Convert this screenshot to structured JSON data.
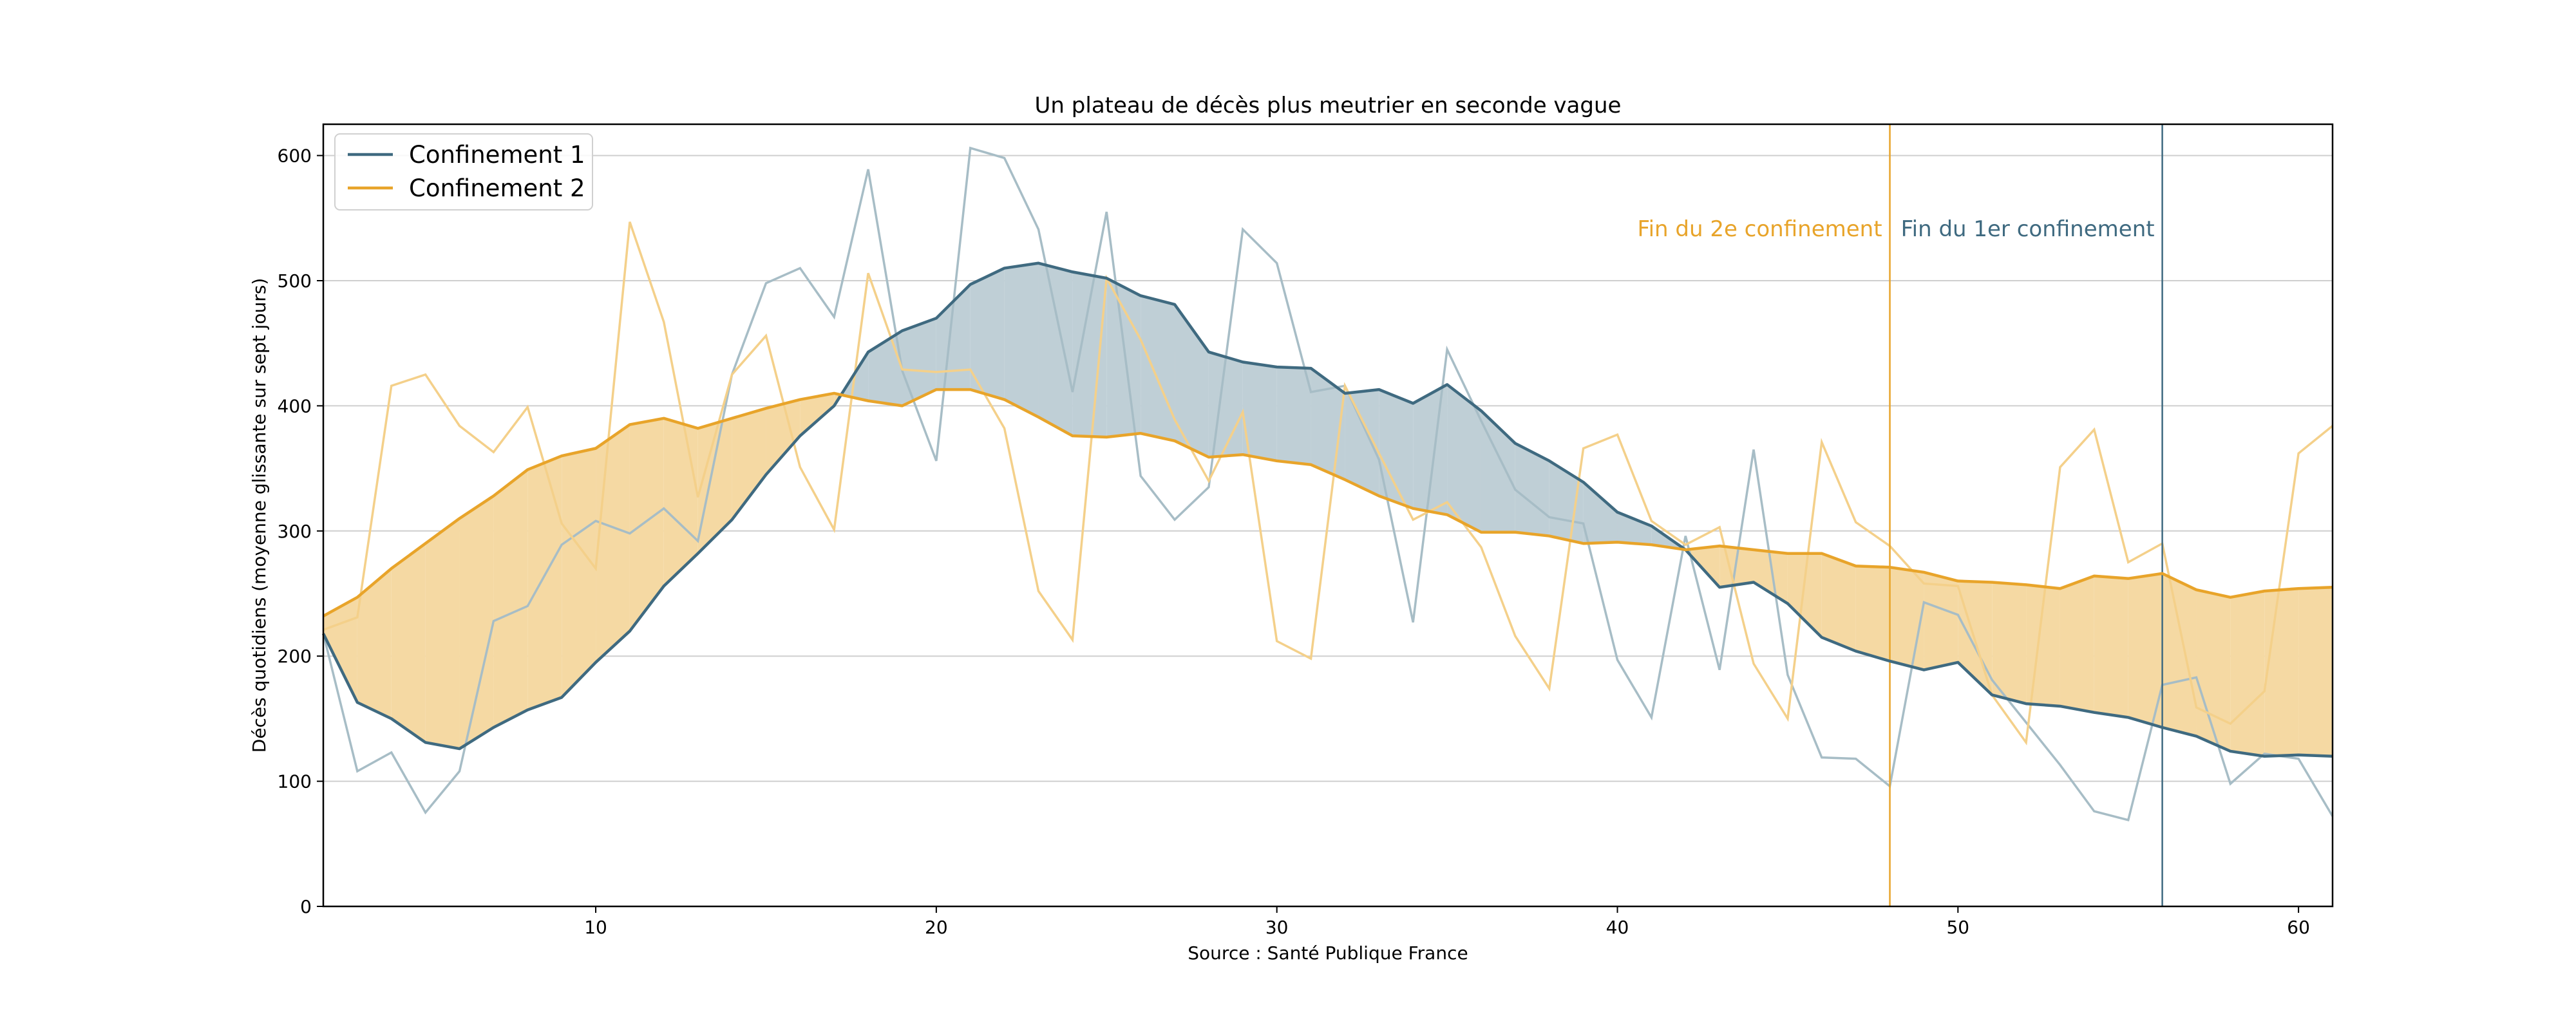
{
  "chart_data": {
    "type": "line",
    "title": "Un plateau de décès plus meutrier en seconde vague",
    "xlabel": "Source : Santé Publique France",
    "ylabel": "Décès quotidiens (moyenne glissante sur sept jours)",
    "xlim": [
      2,
      61
    ],
    "ylim": [
      0,
      625
    ],
    "xticks": [
      10,
      20,
      30,
      40,
      50,
      60
    ],
    "yticks": [
      0,
      100,
      200,
      300,
      400,
      500,
      600
    ],
    "grid": "horizontal",
    "legend_position": "top-left",
    "series": [
      {
        "name": "Confinement 1",
        "color": "#3f6a80",
        "x": [
          2,
          3,
          4,
          5,
          6,
          7,
          8,
          9,
          10,
          11,
          12,
          13,
          14,
          15,
          16,
          17,
          18,
          19,
          20,
          21,
          22,
          23,
          24,
          25,
          26,
          27,
          28,
          29,
          30,
          31,
          32,
          33,
          34,
          35,
          36,
          37,
          38,
          39,
          40,
          41,
          42,
          43,
          44,
          45,
          46,
          47,
          48,
          49,
          50,
          51,
          52,
          53,
          54,
          55,
          56,
          57,
          58,
          59,
          60,
          61
        ],
        "values": [
          218,
          163,
          150,
          131,
          126,
          143,
          157,
          167,
          195,
          220,
          256,
          282,
          309,
          345,
          376,
          400,
          443,
          460,
          470,
          497,
          510,
          514,
          507,
          502,
          488,
          481,
          443,
          435,
          431,
          430,
          410,
          413,
          402,
          417,
          396,
          370,
          356,
          339,
          315,
          304,
          285,
          255,
          259,
          242,
          215,
          204,
          196,
          189,
          195,
          169,
          162,
          160,
          155,
          151,
          143,
          136,
          124,
          120,
          121,
          120
        ]
      },
      {
        "name": "Confinement 2",
        "color": "#e8a42a",
        "x": [
          2,
          3,
          4,
          5,
          6,
          7,
          8,
          9,
          10,
          11,
          12,
          13,
          14,
          15,
          16,
          17,
          18,
          19,
          20,
          21,
          22,
          23,
          24,
          25,
          26,
          27,
          28,
          29,
          30,
          31,
          32,
          33,
          34,
          35,
          36,
          37,
          38,
          39,
          40,
          41,
          42,
          43,
          44,
          45,
          46,
          47,
          48,
          49,
          50,
          51,
          52,
          53,
          54,
          55,
          56,
          57,
          58,
          59,
          60,
          61
        ],
        "values": [
          232,
          247,
          270,
          290,
          310,
          328,
          349,
          360,
          366,
          385,
          390,
          382,
          390,
          398,
          405,
          410,
          404,
          400,
          413,
          413,
          405,
          391,
          376,
          375,
          378,
          372,
          359,
          361,
          356,
          353,
          341,
          328,
          318,
          313,
          299,
          299,
          296,
          290,
          291,
          289,
          285,
          288,
          285,
          282,
          282,
          272,
          271,
          267,
          260,
          259,
          257,
          254,
          264,
          262,
          266,
          253,
          247,
          252,
          254,
          255
        ]
      }
    ],
    "raw_series": [
      {
        "color": "#a7bdc6",
        "x": [
          2,
          3,
          4,
          5,
          6,
          7,
          8,
          9,
          10,
          11,
          12,
          13,
          14,
          15,
          16,
          17,
          18,
          19,
          20,
          21,
          22,
          23,
          24,
          25,
          26,
          27,
          28,
          29,
          30,
          31,
          32,
          33,
          34,
          35,
          36,
          37,
          38,
          39,
          40,
          41,
          42,
          43,
          44,
          45,
          46,
          47,
          48,
          49,
          50,
          51,
          52,
          53,
          54,
          55,
          56,
          57,
          58,
          59,
          60,
          61
        ],
        "values": [
          218,
          108,
          123,
          75,
          108,
          228,
          240,
          289,
          308,
          298,
          318,
          292,
          425,
          498,
          510,
          471,
          589,
          428,
          356,
          606,
          598,
          541,
          411,
          555,
          344,
          309,
          335,
          541,
          514,
          411,
          416,
          357,
          227,
          445,
          388,
          333,
          311,
          306,
          197,
          151,
          296,
          189,
          365,
          185,
          119,
          118,
          96,
          243,
          233,
          181,
          147,
          113,
          76,
          69,
          177,
          183,
          98,
          122,
          118,
          72
        ]
      },
      {
        "color": "#f4d08a",
        "x": [
          2,
          3,
          4,
          5,
          6,
          7,
          8,
          9,
          10,
          11,
          12,
          13,
          14,
          15,
          16,
          17,
          18,
          19,
          20,
          21,
          22,
          23,
          24,
          25,
          26,
          27,
          28,
          29,
          30,
          31,
          32,
          33,
          34,
          35,
          36,
          37,
          38,
          39,
          40,
          41,
          42,
          43,
          44,
          45,
          46,
          47,
          48,
          49,
          50,
          51,
          52,
          53,
          54,
          55,
          56,
          57,
          58,
          59,
          60,
          61
        ],
        "values": [
          221,
          231,
          416,
          425,
          384,
          363,
          399,
          306,
          270,
          547,
          467,
          327,
          425,
          456,
          351,
          301,
          506,
          429,
          427,
          429,
          382,
          252,
          213,
          502,
          453,
          389,
          340,
          395,
          212,
          198,
          416,
          362,
          309,
          323,
          287,
          216,
          174,
          366,
          377,
          308,
          289,
          303,
          194,
          150,
          371,
          307,
          288,
          258,
          256,
          169,
          131,
          351,
          381,
          275,
          290,
          159,
          146,
          172,
          362,
          384
        ]
      }
    ],
    "annotations": [
      {
        "text": "Fin du 2e confinement",
        "x": 48,
        "color": "#e8a42a"
      },
      {
        "text": "Fin du 1er confinement",
        "x": 56,
        "color": "#3f6a80"
      }
    ],
    "fill_colors": {
      "c1_above": "#bfcfd6",
      "c2_above": "#f5d9a3"
    }
  }
}
